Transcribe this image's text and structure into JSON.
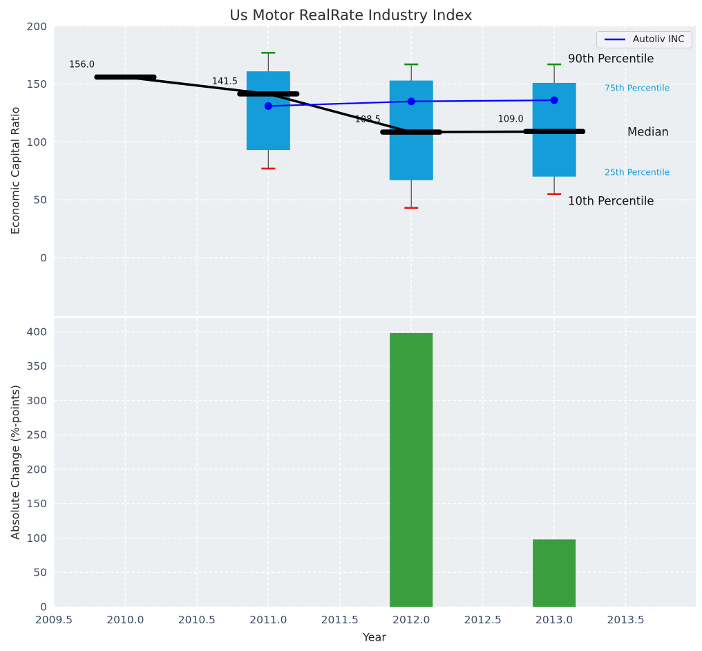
{
  "figure": {
    "title": "Us Motor RealRate Industry Index",
    "background": "#ffffff",
    "axes_background": "#eceff1",
    "grid_color": "#ffffff",
    "tick_color": "#3d4b63",
    "label_color": "#262626"
  },
  "legend": {
    "label": "Autoliv INC",
    "line_color": "#0000ff"
  },
  "annotations": {
    "p90_label": "90th Percentile",
    "p75_label": "75th Percentile",
    "median_label": "Median",
    "p25_label": "25th Percentile",
    "p10_label": "10th Percentile",
    "percentile_label_color": "#1a9cd8",
    "main_label_color": "#141414"
  },
  "chart_data": [
    {
      "type": "box-line",
      "ylabel": "Economic Capital Ratio",
      "ylim": [
        -50.2,
        200.5
      ],
      "yticks": [
        0,
        50,
        100,
        150,
        200
      ],
      "xlim": [
        2009.5,
        2013.99
      ],
      "grid": true,
      "legend_position": "upper right",
      "box_years": [
        2011,
        2012,
        2013
      ],
      "p90": [
        177,
        167,
        167
      ],
      "p75": [
        161,
        153,
        151
      ],
      "p25": [
        93,
        67,
        70
      ],
      "p10": [
        77,
        43,
        55
      ],
      "box_color": "#149dd9",
      "p90_cap_color": "#0a8f0a",
      "p10_cap_color": "#ee1111",
      "whisker_color": "#555555",
      "median_series": {
        "name": "Median",
        "x": [
          2010,
          2011,
          2012,
          2013
        ],
        "y": [
          156.0,
          141.5,
          108.5,
          109.0
        ],
        "point_labels": [
          "156.0",
          "141.5",
          "108.5",
          "109.0"
        ],
        "color": "#000000"
      },
      "company_series": {
        "name": "Autoliv INC",
        "x": [
          2011,
          2012,
          2013
        ],
        "y": [
          131,
          135,
          136
        ],
        "color": "#0000ff",
        "marker": "circle"
      }
    },
    {
      "type": "bar",
      "xlabel": "Year",
      "ylabel": "Absolute Change (%-points)",
      "ylim": [
        0,
        420
      ],
      "yticks": [
        0,
        50,
        100,
        150,
        200,
        250,
        300,
        350,
        400
      ],
      "xlim": [
        2009.5,
        2013.99
      ],
      "xticks": [
        2009.5,
        2010.0,
        2010.5,
        2011.0,
        2011.5,
        2012.0,
        2012.5,
        2013.0,
        2013.5
      ],
      "xtick_labels": [
        "2009.5",
        "2010.0",
        "2010.5",
        "2011.0",
        "2011.5",
        "2012.0",
        "2012.5",
        "2013.0",
        "2013.5"
      ],
      "grid": true,
      "x": [
        2012,
        2013
      ],
      "values": [
        398,
        98
      ],
      "bar_color": "#3a9e3e",
      "bar_width_years": 0.3
    }
  ]
}
